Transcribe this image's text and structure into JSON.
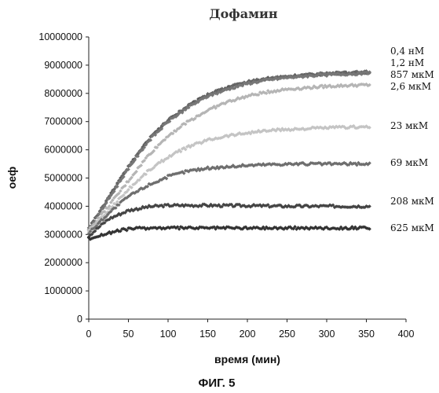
{
  "chart_data": {
    "type": "scatter",
    "title": "Дофамин",
    "xlabel": "время (мин)",
    "ylabel": "оеф",
    "caption": "ФИГ. 5",
    "xlim": [
      0,
      400
    ],
    "ylim": [
      0,
      10000000
    ],
    "x_ticks": [
      "0",
      "50",
      "100",
      "150",
      "200",
      "250",
      "300",
      "350",
      "400"
    ],
    "y_ticks": [
      "0",
      "1000000",
      "2000000",
      "3000000",
      "4000000",
      "5000000",
      "6000000",
      "7000000",
      "8000000",
      "9000000",
      "10000000"
    ],
    "grid": false,
    "legend": "labels at right end of each series",
    "x": [
      0,
      25,
      50,
      75,
      100,
      125,
      150,
      175,
      200,
      225,
      250,
      275,
      300,
      325,
      355
    ],
    "series": [
      {
        "name": "0,4 нМ",
        "color": "#555555",
        "values": [
          3200000,
          4300000,
          5400000,
          6350000,
          7050000,
          7550000,
          7950000,
          8200000,
          8400000,
          8520000,
          8600000,
          8650000,
          8700000,
          8720000,
          8750000
        ]
      },
      {
        "name": "1,2 нМ",
        "color": "#666666",
        "values": [
          3200000,
          4300000,
          5400000,
          6350000,
          7050000,
          7550000,
          7950000,
          8200000,
          8400000,
          8520000,
          8600000,
          8650000,
          8700000,
          8720000,
          8750000
        ]
      },
      {
        "name": "857 мкМ",
        "color": "#777777",
        "values": [
          3150000,
          4250000,
          5350000,
          6300000,
          7000000,
          7500000,
          7900000,
          8150000,
          8350000,
          8480000,
          8560000,
          8620000,
          8660000,
          8690000,
          8720000
        ]
      },
      {
        "name": "2,6 мкМ",
        "color": "#b5b5b5",
        "values": [
          3150000,
          4000000,
          4900000,
          5800000,
          6500000,
          7000000,
          7400000,
          7700000,
          7900000,
          8050000,
          8150000,
          8200000,
          8250000,
          8280000,
          8300000
        ]
      },
      {
        "name": "23 мкМ",
        "color": "#c4c4c4",
        "values": [
          3100000,
          3850000,
          4600000,
          5250000,
          5750000,
          6100000,
          6350000,
          6500000,
          6600000,
          6680000,
          6720000,
          6750000,
          6780000,
          6800000,
          6820000
        ]
      },
      {
        "name": "69 мкМ",
        "color": "#6e6e6e",
        "values": [
          3050000,
          3750000,
          4350000,
          4750000,
          5050000,
          5250000,
          5350000,
          5400000,
          5450000,
          5480000,
          5500000,
          5500000,
          5500000,
          5500000,
          5500000
        ]
      },
      {
        "name": "208 мкМ",
        "color": "#444444",
        "values": [
          2950000,
          3550000,
          3850000,
          3980000,
          4030000,
          4030000,
          4030000,
          4020000,
          4020000,
          4010000,
          4000000,
          4000000,
          4000000,
          4000000,
          4000000
        ]
      },
      {
        "name": "625 мкМ",
        "color": "#333333",
        "values": [
          2850000,
          3050000,
          3200000,
          3230000,
          3230000,
          3230000,
          3230000,
          3230000,
          3230000,
          3230000,
          3230000,
          3230000,
          3230000,
          3230000,
          3230000
        ]
      }
    ]
  }
}
